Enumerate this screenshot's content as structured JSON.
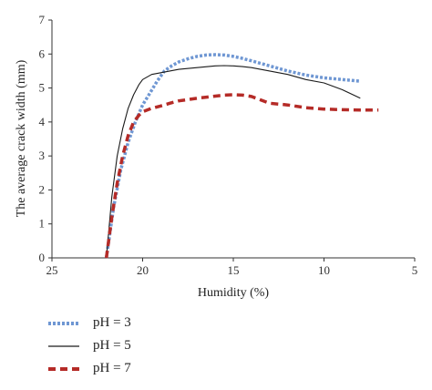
{
  "chart_data": {
    "type": "line",
    "xlabel": "Humidity (%)",
    "ylabel": "The average crack width (mm)",
    "xlim": [
      25,
      5
    ],
    "ylim": [
      0,
      7
    ],
    "x_ticks": [
      25,
      20,
      15,
      10,
      5
    ],
    "y_ticks": [
      0,
      1,
      2,
      3,
      4,
      5,
      6,
      7
    ],
    "grid": false,
    "legend_position": "bottom-left",
    "series": [
      {
        "name": "pH = 3",
        "color": "#6f97d3",
        "style": "dotted-thick",
        "x": [
          22.0,
          21.6,
          21.2,
          20.8,
          20.4,
          20.0,
          19.6,
          19.2,
          18.8,
          18.4,
          18.0,
          17.5,
          17.0,
          16.5,
          16.0,
          15.5,
          15.0,
          14.5,
          14.0,
          13.0,
          12.0,
          11.0,
          10.0,
          9.0,
          8.0
        ],
        "y": [
          0.0,
          1.5,
          2.6,
          3.4,
          4.0,
          4.5,
          4.85,
          5.2,
          5.5,
          5.65,
          5.77,
          5.86,
          5.93,
          5.97,
          5.98,
          5.97,
          5.93,
          5.87,
          5.8,
          5.65,
          5.5,
          5.38,
          5.3,
          5.25,
          5.2
        ]
      },
      {
        "name": "pH = 5",
        "color": "#1a1a1a",
        "style": "solid-thin",
        "x": [
          22.0,
          21.7,
          21.4,
          21.1,
          20.8,
          20.5,
          20.2,
          20.0,
          19.5,
          19.0,
          18.5,
          18.0,
          17.0,
          16.0,
          15.5,
          15.0,
          14.5,
          14.0,
          13.0,
          12.0,
          11.0,
          10.0,
          9.0,
          8.0
        ],
        "y": [
          0.0,
          1.8,
          3.0,
          3.8,
          4.4,
          4.8,
          5.1,
          5.25,
          5.4,
          5.45,
          5.5,
          5.55,
          5.6,
          5.65,
          5.66,
          5.65,
          5.63,
          5.6,
          5.5,
          5.4,
          5.25,
          5.15,
          4.95,
          4.7
        ]
      },
      {
        "name": "pH = 7",
        "color": "#b52b27",
        "style": "dashed-thick",
        "x": [
          22.0,
          21.7,
          21.4,
          21.1,
          20.8,
          20.5,
          20.2,
          20.0,
          19.5,
          19.0,
          18.5,
          18.0,
          17.0,
          16.0,
          15.5,
          15.0,
          14.5,
          14.0,
          13.5,
          13.0,
          12.0,
          11.0,
          10.0,
          9.0,
          8.0,
          7.0
        ],
        "y": [
          0.0,
          1.2,
          2.2,
          3.0,
          3.6,
          4.0,
          4.2,
          4.3,
          4.4,
          4.47,
          4.55,
          4.62,
          4.7,
          4.76,
          4.79,
          4.8,
          4.79,
          4.75,
          4.65,
          4.55,
          4.5,
          4.42,
          4.38,
          4.36,
          4.35,
          4.35
        ]
      }
    ]
  }
}
